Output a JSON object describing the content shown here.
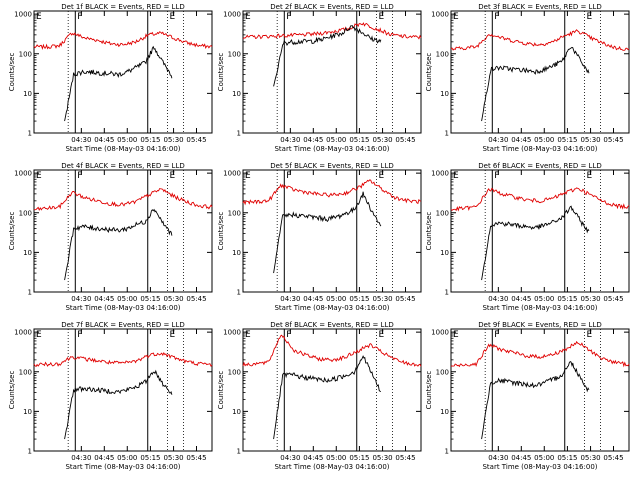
{
  "page": {
    "xlabel": "Start Time (08-May-03 04:16:00)",
    "ylabel": "Counts/sec"
  },
  "chart_data": [
    {
      "type": "line",
      "title": "Det 1f BLACK = Events, RED = LLD",
      "markers": [
        "F",
        "E"
      ],
      "x_ticks": [
        "04:30",
        "04:45",
        "05:00",
        "05:15",
        "05:30",
        "05:45"
      ],
      "y_ticks": [
        "1",
        "10",
        "100",
        "1000"
      ],
      "y_log": true,
      "ylim": [
        1,
        1200
      ],
      "red_level": [
        150,
        150,
        160,
        340,
        250,
        220,
        180,
        170,
        200,
        300,
        330,
        250,
        190,
        160,
        150
      ],
      "black_level": [
        2,
        30,
        35,
        35,
        33,
        32,
        30,
        35,
        45,
        60,
        150,
        60,
        28
      ]
    },
    {
      "type": "line",
      "title": "Det 2f BLACK = Events, RED = LLD",
      "markers": [
        "F",
        "E"
      ],
      "x_ticks": [
        "04:30",
        "04:45",
        "05:00",
        "05:15",
        "05:30",
        "05:45"
      ],
      "y_ticks": [
        "1",
        "10",
        "100",
        "1000"
      ],
      "y_log": true,
      "ylim": [
        1,
        1200
      ],
      "red_level": [
        260,
        270,
        280,
        290,
        300,
        320,
        360,
        420,
        600,
        430,
        300,
        270,
        260
      ],
      "black_level": [
        15,
        190,
        200,
        205,
        210,
        230,
        280,
        330,
        500,
        360,
        240,
        210
      ]
    },
    {
      "type": "line",
      "title": "Det 3f BLACK = Events, RED = LLD",
      "markers": [
        "F",
        "E"
      ],
      "x_ticks": [
        "04:30",
        "04:45",
        "05:00",
        "05:15",
        "05:30",
        "05:45"
      ],
      "y_ticks": [
        "1",
        "10",
        "100",
        "1000"
      ],
      "y_log": true,
      "ylim": [
        1,
        1200
      ],
      "red_level": [
        130,
        140,
        150,
        320,
        250,
        210,
        180,
        170,
        200,
        290,
        380,
        250,
        180,
        140,
        130
      ],
      "black_level": [
        2,
        40,
        45,
        42,
        40,
        38,
        36,
        40,
        50,
        65,
        160,
        70,
        32
      ]
    },
    {
      "type": "line",
      "title": "Det 4f BLACK = Events, RED = LLD",
      "markers": [
        "F",
        "E"
      ],
      "x_ticks": [
        "04:30",
        "04:45",
        "05:00",
        "05:15",
        "05:30",
        "05:45"
      ],
      "y_ticks": [
        "1",
        "10",
        "100",
        "1000"
      ],
      "y_log": true,
      "ylim": [
        1,
        1200
      ],
      "red_level": [
        120,
        130,
        140,
        330,
        240,
        200,
        170,
        160,
        190,
        280,
        400,
        260,
        190,
        150,
        140
      ],
      "black_level": [
        2,
        40,
        45,
        42,
        40,
        38,
        36,
        40,
        50,
        60,
        130,
        55,
        28
      ]
    },
    {
      "type": "line",
      "title": "Det 5f BLACK = Events, RED = LLD",
      "markers": [
        "F",
        "E"
      ],
      "x_ticks": [
        "04:30",
        "04:45",
        "05:00",
        "05:15",
        "05:30",
        "05:45"
      ],
      "y_ticks": [
        "1",
        "10",
        "100",
        "1000"
      ],
      "y_log": true,
      "ylim": [
        1,
        1200
      ],
      "red_level": [
        180,
        190,
        200,
        500,
        380,
        330,
        290,
        280,
        310,
        420,
        650,
        380,
        240,
        200,
        190
      ],
      "black_level": [
        3,
        80,
        90,
        85,
        80,
        75,
        70,
        78,
        95,
        120,
        300,
        110,
        45
      ]
    },
    {
      "type": "line",
      "title": "Det 6f BLACK = Events, RED = LLD",
      "markers": [
        "F",
        "E"
      ],
      "x_ticks": [
        "04:30",
        "04:45",
        "05:00",
        "05:15",
        "05:30",
        "05:45"
      ],
      "y_ticks": [
        "1",
        "10",
        "100",
        "1000"
      ],
      "y_log": true,
      "ylim": [
        1,
        1200
      ],
      "red_level": [
        120,
        130,
        140,
        400,
        300,
        250,
        210,
        200,
        230,
        320,
        420,
        280,
        190,
        150,
        140
      ],
      "black_level": [
        2,
        50,
        55,
        52,
        48,
        45,
        42,
        48,
        58,
        75,
        140,
        65,
        32
      ]
    },
    {
      "type": "line",
      "title": "Det 7f BLACK = Events, RED = LLD",
      "markers": [
        "F",
        "E"
      ],
      "x_ticks": [
        "04:30",
        "04:45",
        "05:00",
        "05:15",
        "05:30",
        "05:45"
      ],
      "y_ticks": [
        "1",
        "10",
        "100",
        "1000"
      ],
      "y_log": true,
      "ylim": [
        1,
        1200
      ],
      "red_level": [
        150,
        155,
        160,
        240,
        210,
        190,
        170,
        165,
        185,
        260,
        300,
        230,
        180,
        160,
        150
      ],
      "black_level": [
        2,
        35,
        38,
        36,
        34,
        33,
        31,
        35,
        42,
        55,
        110,
        50,
        28
      ]
    },
    {
      "type": "line",
      "title": "Det 8f BLACK = Events, RED = LLD",
      "markers": [
        "F",
        "E"
      ],
      "x_ticks": [
        "04:30",
        "04:45",
        "05:00",
        "05:15",
        "05:30",
        "05:45"
      ],
      "y_ticks": [
        "1",
        "10",
        "100",
        "1000"
      ],
      "y_log": true,
      "ylim": [
        1,
        1200
      ],
      "red_level": [
        150,
        160,
        170,
        900,
        350,
        260,
        210,
        200,
        230,
        330,
        480,
        300,
        200,
        160,
        150
      ],
      "black_level": [
        2,
        80,
        85,
        75,
        70,
        65,
        60,
        68,
        80,
        100,
        250,
        90,
        30
      ]
    },
    {
      "type": "line",
      "title": "Det 9f BLACK = Events, RED = LLD",
      "markers": [
        "F",
        "E"
      ],
      "x_ticks": [
        "04:30",
        "04:45",
        "05:00",
        "05:15",
        "05:30",
        "05:45"
      ],
      "y_ticks": [
        "1",
        "10",
        "100",
        "1000"
      ],
      "y_log": true,
      "ylim": [
        1,
        1200
      ],
      "red_level": [
        140,
        150,
        160,
        480,
        360,
        300,
        250,
        240,
        270,
        370,
        550,
        330,
        210,
        170,
        150
      ],
      "black_level": [
        2,
        55,
        60,
        56,
        52,
        48,
        45,
        52,
        65,
        85,
        180,
        75,
        32
      ]
    }
  ]
}
